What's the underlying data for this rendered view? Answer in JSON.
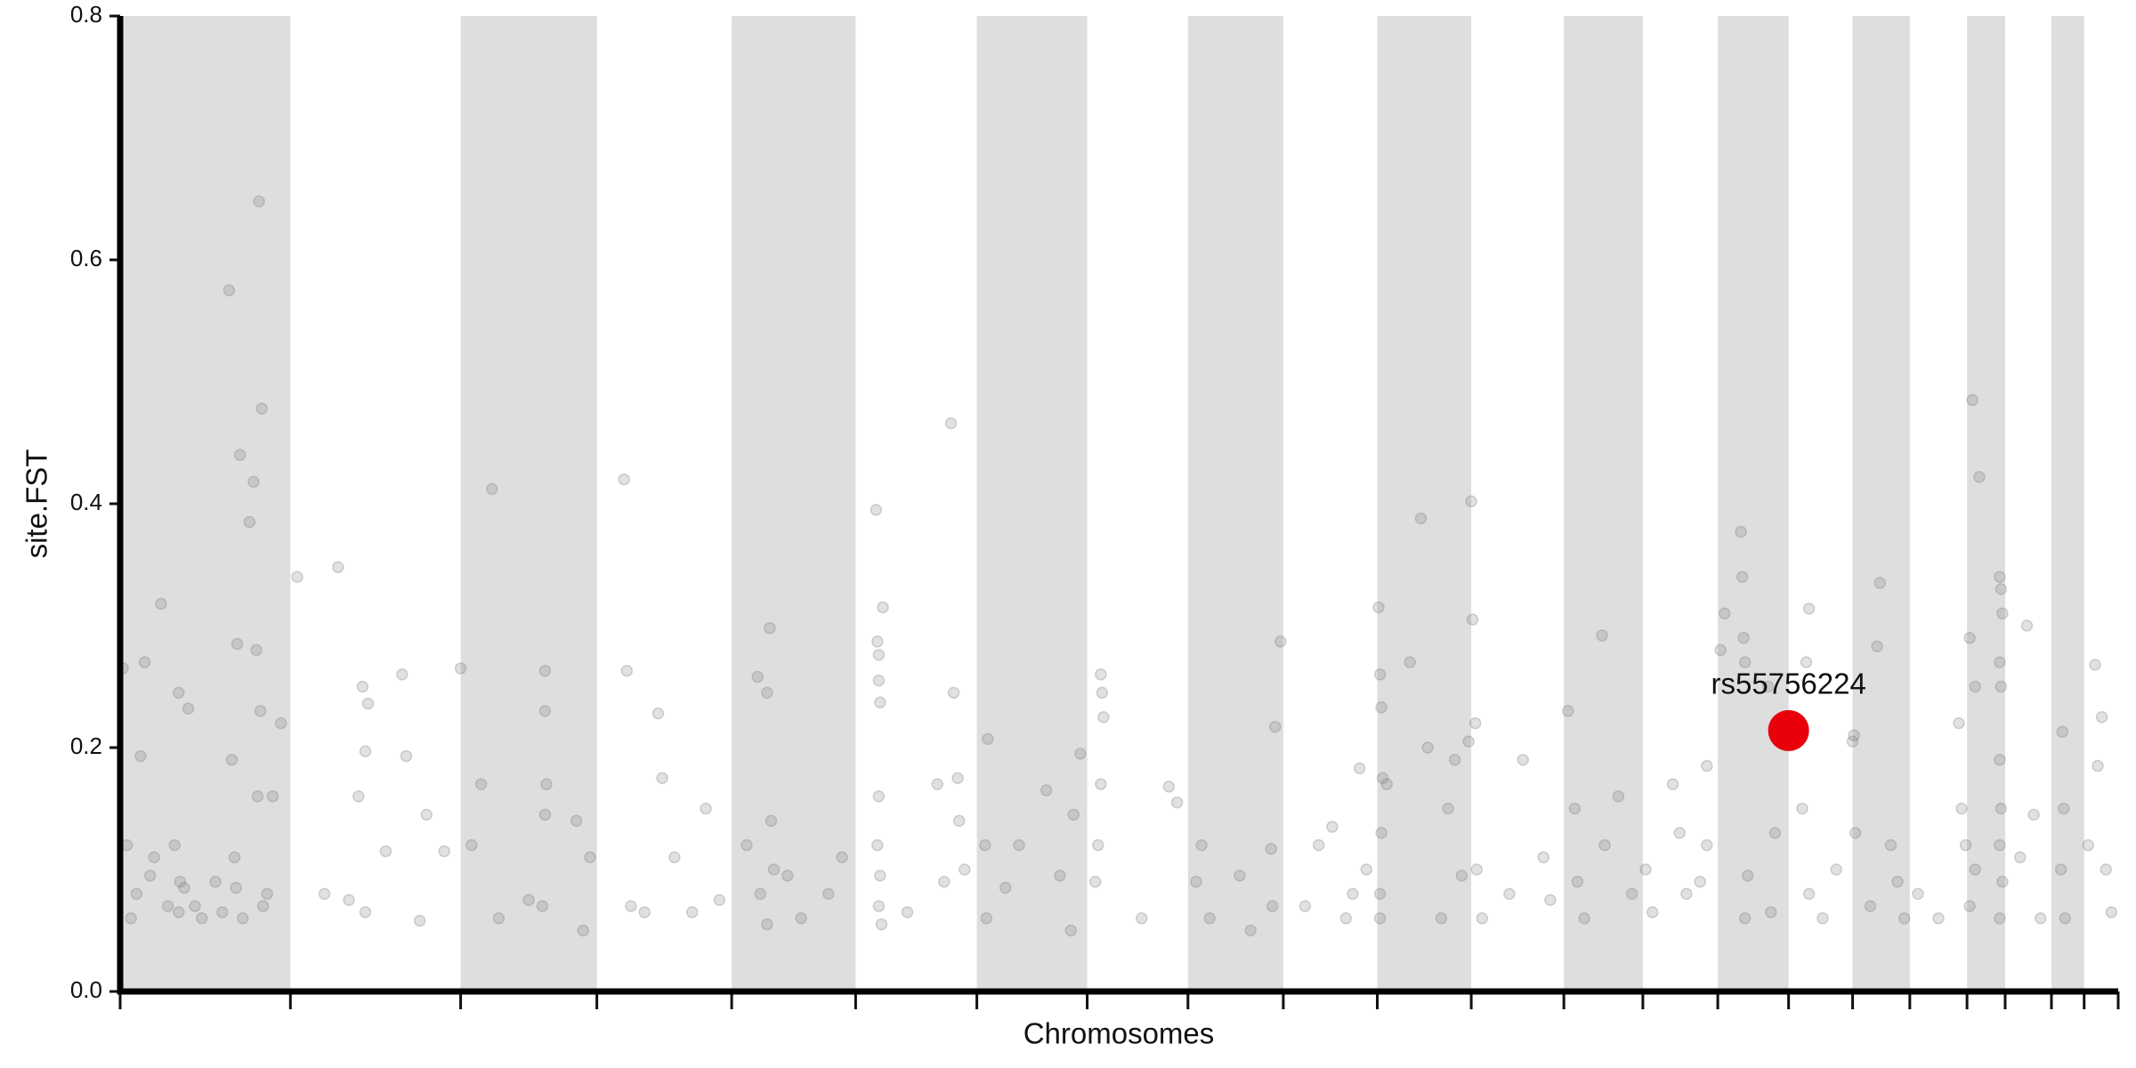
{
  "chart_data": {
    "type": "scatter",
    "ylabel": "site.FST",
    "xlabel": "Chromosomes",
    "xlim": [
      0,
      1467
    ],
    "xticks": [
      0,
      125,
      250,
      350,
      449,
      540,
      629,
      710,
      784,
      854,
      923,
      992,
      1060,
      1118,
      1173,
      1225,
      1272,
      1314,
      1356,
      1384,
      1418,
      1442,
      1467
    ],
    "shade_alternate": true,
    "shade_color": "#dedede",
    "ylim": [
      0,
      0.8
    ],
    "yticks": [
      {
        "value": 0,
        "label": "0.0"
      },
      0.2,
      0.4,
      0.6,
      0.8
    ],
    "point_color": "#777777",
    "x": [
      2,
      5,
      8,
      12,
      15,
      18,
      22,
      25,
      30,
      35,
      40,
      43,
      47,
      50,
      80,
      82,
      84,
      86,
      88,
      90,
      95,
      98,
      100,
      102,
      104,
      103,
      101,
      105,
      108,
      112,
      118,
      85,
      75,
      70,
      60,
      55,
      43,
      44,
      130,
      160,
      178,
      180,
      182,
      180,
      175,
      207,
      210,
      225,
      220,
      238,
      195,
      168,
      150,
      250,
      258,
      265,
      273,
      278,
      300,
      312,
      312,
      313,
      312,
      310,
      335,
      340,
      345,
      370,
      372,
      375,
      395,
      398,
      407,
      420,
      430,
      440,
      385,
      468,
      470,
      475,
      477,
      478,
      480,
      475,
      460,
      490,
      500,
      520,
      530,
      555,
      556,
      557,
      557,
      558,
      560,
      557,
      556,
      558,
      557,
      559,
      578,
      600,
      610,
      612,
      615,
      616,
      620,
      605,
      637,
      635,
      636,
      650,
      660,
      680,
      690,
      700,
      705,
      698,
      720,
      721,
      722,
      720,
      718,
      716,
      750,
      770,
      776,
      790,
      794,
      800,
      822,
      845,
      848,
      852,
      846,
      830,
      870,
      880,
      890,
      900,
      910,
      915,
      905,
      924,
      925,
      926,
      927,
      926,
      925,
      925,
      930,
      947,
      955,
      960,
      970,
      975,
      980,
      985,
      992,
      993,
      995,
      990,
      996,
      1000,
      1020,
      1030,
      1045,
      1050,
      1063,
      1068,
      1070,
      1075,
      1088,
      1090,
      1100,
      1110,
      1120,
      1125,
      1140,
      1145,
      1150,
      1160,
      1165,
      1190,
      1191,
      1192,
      1193,
      1195,
      1193,
      1175,
      1178,
      1165,
      1210,
      1215,
      1212,
      1240,
      1238,
      1235,
      1240,
      1250,
      1260,
      1272,
      1273,
      1274,
      1290,
      1292,
      1300,
      1305,
      1310,
      1285,
      1320,
      1335,
      1350,
      1352,
      1355,
      1360,
      1365,
      1358,
      1362,
      1362,
      1358,
      1380,
      1381,
      1382,
      1380,
      1381,
      1380,
      1381,
      1380,
      1382,
      1380,
      1400,
      1405,
      1410,
      1395,
      1426,
      1427,
      1425,
      1428,
      1450,
      1455,
      1452,
      1458,
      1462,
      1445
    ],
    "values": [
      0.265,
      0.12,
      0.06,
      0.08,
      0.193,
      0.27,
      0.095,
      0.11,
      0.318,
      0.07,
      0.12,
      0.245,
      0.085,
      0.232,
      0.575,
      0.19,
      0.11,
      0.285,
      0.44,
      0.06,
      0.385,
      0.418,
      0.28,
      0.648,
      0.478,
      0.23,
      0.16,
      0.07,
      0.08,
      0.16,
      0.22,
      0.085,
      0.065,
      0.09,
      0.06,
      0.07,
      0.065,
      0.09,
      0.34,
      0.348,
      0.25,
      0.065,
      0.236,
      0.197,
      0.16,
      0.26,
      0.193,
      0.145,
      0.058,
      0.115,
      0.115,
      0.075,
      0.08,
      0.265,
      0.12,
      0.17,
      0.412,
      0.06,
      0.075,
      0.263,
      0.23,
      0.17,
      0.145,
      0.07,
      0.14,
      0.05,
      0.11,
      0.42,
      0.263,
      0.07,
      0.228,
      0.175,
      0.11,
      0.065,
      0.15,
      0.075,
      0.065,
      0.258,
      0.08,
      0.245,
      0.298,
      0.14,
      0.1,
      0.055,
      0.12,
      0.095,
      0.06,
      0.08,
      0.11,
      0.395,
      0.287,
      0.276,
      0.255,
      0.237,
      0.315,
      0.16,
      0.12,
      0.095,
      0.07,
      0.055,
      0.065,
      0.17,
      0.466,
      0.245,
      0.175,
      0.14,
      0.1,
      0.09,
      0.207,
      0.12,
      0.06,
      0.085,
      0.12,
      0.165,
      0.095,
      0.145,
      0.195,
      0.05,
      0.26,
      0.245,
      0.225,
      0.17,
      0.12,
      0.09,
      0.06,
      0.168,
      0.155,
      0.09,
      0.12,
      0.06,
      0.095,
      0.117,
      0.217,
      0.287,
      0.07,
      0.05,
      0.07,
      0.12,
      0.135,
      0.06,
      0.183,
      0.1,
      0.08,
      0.315,
      0.26,
      0.233,
      0.175,
      0.13,
      0.08,
      0.06,
      0.17,
      0.27,
      0.388,
      0.2,
      0.06,
      0.15,
      0.19,
      0.095,
      0.402,
      0.305,
      0.22,
      0.205,
      0.1,
      0.06,
      0.08,
      0.19,
      0.11,
      0.075,
      0.23,
      0.15,
      0.09,
      0.06,
      0.292,
      0.12,
      0.16,
      0.08,
      0.1,
      0.065,
      0.17,
      0.13,
      0.08,
      0.09,
      0.12,
      0.377,
      0.34,
      0.29,
      0.27,
      0.095,
      0.06,
      0.28,
      0.31,
      0.185,
      0.25,
      0.13,
      0.065,
      0.314,
      0.27,
      0.15,
      0.08,
      0.06,
      0.1,
      0.205,
      0.21,
      0.13,
      0.283,
      0.335,
      0.12,
      0.09,
      0.06,
      0.07,
      0.08,
      0.06,
      0.22,
      0.15,
      0.12,
      0.485,
      0.422,
      0.29,
      0.25,
      0.1,
      0.07,
      0.34,
      0.33,
      0.31,
      0.27,
      0.25,
      0.19,
      0.15,
      0.12,
      0.09,
      0.06,
      0.3,
      0.145,
      0.06,
      0.11,
      0.213,
      0.15,
      0.1,
      0.06,
      0.268,
      0.225,
      0.185,
      0.1,
      0.065,
      0.12
    ],
    "highlight": {
      "label": "rs55756224",
      "x": 1225,
      "value": 0.214,
      "color": "#e8000b"
    }
  }
}
